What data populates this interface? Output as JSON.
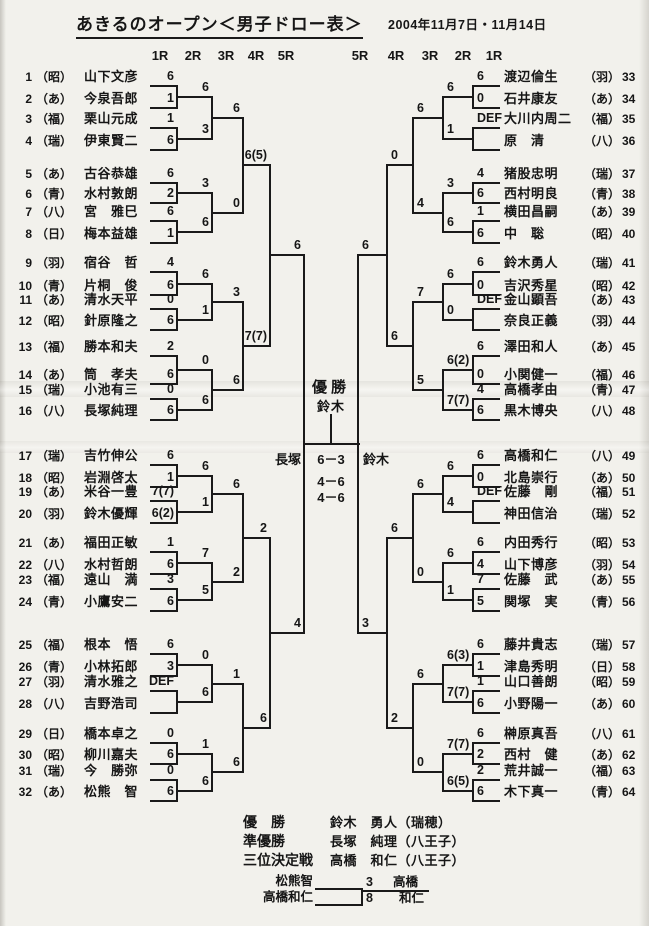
{
  "header": {
    "title": "あきるのオープン＜男子ドロー表＞",
    "date": "2004年11月7日・11月14日"
  },
  "rounds_left": [
    "1R",
    "2R",
    "3R",
    "4R",
    "5R"
  ],
  "rounds_right": [
    "5R",
    "4R",
    "3R",
    "2R",
    "1R"
  ],
  "bracket": {
    "left": {
      "players": [
        {
          "seed": "1",
          "club": "（昭）",
          "name": "山下文彦",
          "r1": "6"
        },
        {
          "seed": "2",
          "club": "（あ）",
          "name": "今泉吾郎",
          "r1": "1"
        },
        {
          "seed": "3",
          "club": "（福）",
          "name": "栗山元成",
          "r1": "1"
        },
        {
          "seed": "4",
          "club": "（瑞）",
          "name": "伊東賢二",
          "r1": "6"
        },
        {
          "seed": "5",
          "club": "（あ）",
          "name": "古谷恭雄",
          "r1": "6"
        },
        {
          "seed": "6",
          "club": "（青）",
          "name": "水村敦朗",
          "r1": "2"
        },
        {
          "seed": "7",
          "club": "（八）",
          "name": "宮　雅巳",
          "r1": "6"
        },
        {
          "seed": "8",
          "club": "（日）",
          "name": "梅本益雄",
          "r1": "1"
        },
        {
          "seed": "9",
          "club": "（羽）",
          "name": "宿谷　哲",
          "r1": "4"
        },
        {
          "seed": "10",
          "club": "（青）",
          "name": "片桐　俊",
          "r1": "6"
        },
        {
          "seed": "11",
          "club": "（あ）",
          "name": "清水天平",
          "r1": "0"
        },
        {
          "seed": "12",
          "club": "（昭）",
          "name": "針原隆之",
          "r1": "6"
        },
        {
          "seed": "13",
          "club": "（福）",
          "name": "勝本和夫",
          "r1": "2"
        },
        {
          "seed": "14",
          "club": "（あ）",
          "name": "筒　孝夫",
          "r1": "6"
        },
        {
          "seed": "15",
          "club": "（瑞）",
          "name": "小池有三",
          "r1": "0"
        },
        {
          "seed": "16",
          "club": "（八）",
          "name": "長塚純理",
          "r1": "6"
        },
        {
          "seed": "17",
          "club": "（瑞）",
          "name": "吉竹伸公",
          "r1": "6"
        },
        {
          "seed": "18",
          "club": "（昭）",
          "name": "岩淵啓太",
          "r1": "1"
        },
        {
          "seed": "19",
          "club": "（あ）",
          "name": "米谷一豊",
          "r1": "7(7)"
        },
        {
          "seed": "20",
          "club": "（羽）",
          "name": "鈴木優輝",
          "r1": "6(2)"
        },
        {
          "seed": "21",
          "club": "（あ）",
          "name": "福田正敏",
          "r1": "1"
        },
        {
          "seed": "22",
          "club": "（八）",
          "name": "水村哲朗",
          "r1": "6"
        },
        {
          "seed": "23",
          "club": "（福）",
          "name": "遠山　満",
          "r1": "3"
        },
        {
          "seed": "24",
          "club": "（青）",
          "name": "小鷹安二",
          "r1": "6"
        },
        {
          "seed": "25",
          "club": "（福）",
          "name": "根本　悟",
          "r1": "6"
        },
        {
          "seed": "26",
          "club": "（青）",
          "name": "小林拓郎",
          "r1": "3"
        },
        {
          "seed": "27",
          "club": "（羽）",
          "name": "清水雅之",
          "r1": "DEF"
        },
        {
          "seed": "28",
          "club": "（八）",
          "name": "吉野浩司",
          "r1": ""
        },
        {
          "seed": "29",
          "club": "（日）",
          "name": "橋本卓之",
          "r1": "0"
        },
        {
          "seed": "30",
          "club": "（昭）",
          "name": "柳川嘉夫",
          "r1": "6"
        },
        {
          "seed": "31",
          "club": "（瑞）",
          "name": "今　勝弥",
          "r1": "0"
        },
        {
          "seed": "32",
          "club": "（あ）",
          "name": "松熊　智",
          "r1": "6"
        }
      ],
      "r2": [
        "6",
        "3",
        "3",
        "6",
        "6",
        "1",
        "0",
        "6",
        "6",
        "1",
        "7",
        "5",
        "0",
        "6",
        "1",
        "6"
      ],
      "r3": [
        "6",
        "0",
        "3",
        "6",
        "6",
        "2",
        "1",
        "6"
      ],
      "r4": [
        "6(5)",
        "7(7)",
        "2",
        "6"
      ],
      "r5": [
        "6",
        "4"
      ],
      "finalist": "長塚"
    },
    "right": {
      "players": [
        {
          "seed": "33",
          "club": "（羽）",
          "name": "渡辺倫生",
          "r1": "6"
        },
        {
          "seed": "34",
          "club": "（あ）",
          "name": "石井康友",
          "r1": "0"
        },
        {
          "seed": "35",
          "club": "（福）",
          "name": "大川内周二",
          "r1": "DEF"
        },
        {
          "seed": "36",
          "club": "（八）",
          "name": "原　清",
          "r1": ""
        },
        {
          "seed": "37",
          "club": "（瑞）",
          "name": "猪股忠明",
          "r1": "4"
        },
        {
          "seed": "38",
          "club": "（青）",
          "name": "西村明良",
          "r1": "6"
        },
        {
          "seed": "39",
          "club": "（あ）",
          "name": "横田昌嗣",
          "r1": "1"
        },
        {
          "seed": "40",
          "club": "（昭）",
          "name": "中　聡",
          "r1": "6"
        },
        {
          "seed": "41",
          "club": "（瑞）",
          "name": "鈴木勇人",
          "r1": "6"
        },
        {
          "seed": "42",
          "club": "（昭）",
          "name": "吉沢秀星",
          "r1": "0"
        },
        {
          "seed": "43",
          "club": "（あ）",
          "name": "金山顕吾",
          "r1": "DEF"
        },
        {
          "seed": "44",
          "club": "（羽）",
          "name": "奈良正義",
          "r1": ""
        },
        {
          "seed": "45",
          "club": "（あ）",
          "name": "澤田和人",
          "r1": "6"
        },
        {
          "seed": "46",
          "club": "（福）",
          "name": "小関健一",
          "r1": "0"
        },
        {
          "seed": "47",
          "club": "（青）",
          "name": "高橋孝由",
          "r1": "4"
        },
        {
          "seed": "48",
          "club": "（八）",
          "name": "黒木博央",
          "r1": "6"
        },
        {
          "seed": "49",
          "club": "（八）",
          "name": "高橋和仁",
          "r1": "6"
        },
        {
          "seed": "50",
          "club": "（あ）",
          "name": "北島崇行",
          "r1": "0"
        },
        {
          "seed": "51",
          "club": "（福）",
          "name": "佐藤　剛",
          "r1": "DEF"
        },
        {
          "seed": "52",
          "club": "（瑞）",
          "name": "神田信治",
          "r1": ""
        },
        {
          "seed": "53",
          "club": "（昭）",
          "name": "内田秀行",
          "r1": "6"
        },
        {
          "seed": "54",
          "club": "（羽）",
          "name": "山下博彦",
          "r1": "4"
        },
        {
          "seed": "55",
          "club": "（あ）",
          "name": "佐藤　武",
          "r1": "7"
        },
        {
          "seed": "56",
          "club": "（青）",
          "name": "関塚　実",
          "r1": "5"
        },
        {
          "seed": "57",
          "club": "（瑞）",
          "name": "藤井貴志",
          "r1": "6"
        },
        {
          "seed": "58",
          "club": "（日）",
          "name": "津島秀明",
          "r1": "1"
        },
        {
          "seed": "59",
          "club": "（昭）",
          "name": "山口善朗",
          "r1": "1"
        },
        {
          "seed": "60",
          "club": "（あ）",
          "name": "小野陽一",
          "r1": "6"
        },
        {
          "seed": "61",
          "club": "（八）",
          "name": "榊原真吾",
          "r1": "6"
        },
        {
          "seed": "62",
          "club": "（あ）",
          "name": "西村　健",
          "r1": "2"
        },
        {
          "seed": "63",
          "club": "（福）",
          "name": "荒井誠一",
          "r1": "2"
        },
        {
          "seed": "64",
          "club": "（青）",
          "name": "木下真一",
          "r1": "6"
        }
      ],
      "r2": [
        "6",
        "1",
        "3",
        "6",
        "6",
        "0",
        "6(2)",
        "7(7)",
        "6",
        "4",
        "6",
        "1",
        "6(3)",
        "7(7)",
        "7(7)",
        "6(5)"
      ],
      "r3": [
        "6",
        "4",
        "7",
        "5",
        "6",
        "0",
        "6",
        "0"
      ],
      "r4": [
        "0",
        "6",
        "6",
        "2"
      ],
      "r5": [
        "6",
        "3"
      ],
      "finalist": "鈴木"
    },
    "final": {
      "champion_label": "優勝",
      "champion_name": "鈴木",
      "sets": [
        "6－3",
        "4－6",
        "4－6"
      ]
    }
  },
  "results": {
    "rows": [
      {
        "label": "優　勝",
        "value": "鈴木　勇人（瑞穂）"
      },
      {
        "label": "準優勝",
        "value": "長塚　純理（八王子）"
      },
      {
        "label": "三位決定戦",
        "value": "高橋　和仁（八王子）"
      }
    ],
    "third_place_match": {
      "player1": "松熊智",
      "player2": "高橋和仁",
      "score1": "3",
      "score2": "8",
      "winner_top": "高橋",
      "winner_bottom": "和仁"
    }
  }
}
